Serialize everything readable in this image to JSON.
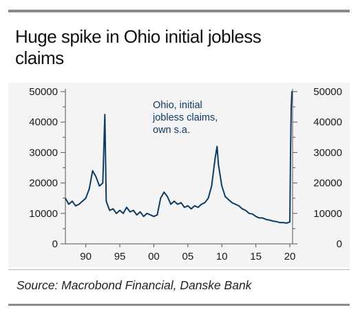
{
  "header": {
    "title_line1": "Huge spike in Ohio initial jobless",
    "title_line2": "claims"
  },
  "footer": {
    "source": "Source: Macrobond Financial, Danske Bank"
  },
  "colors": {
    "series": "#0e3a62",
    "panel": "#f4f4f4",
    "rules": "#8a8a8a"
  },
  "chart_data": {
    "type": "line",
    "title": "",
    "xlabel": "",
    "ylabel": "",
    "x_ticks": [
      "90",
      "95",
      "00",
      "05",
      "10",
      "15",
      "20"
    ],
    "x_tick_years": [
      1990,
      1995,
      2000,
      2005,
      2010,
      2015,
      2020
    ],
    "y_ticks_left": [
      "0",
      "10000",
      "20000",
      "30000",
      "40000",
      "50000"
    ],
    "y_ticks_right": [
      "0",
      "10000",
      "20000",
      "30000",
      "40000",
      "50000"
    ],
    "ylim": [
      0,
      50000
    ],
    "xlim": [
      1987.0,
      2020.4
    ],
    "grid": false,
    "annotation": [
      "Ohio, initial",
      "jobless claims,",
      "own s.a."
    ],
    "series": [
      {
        "color": "#0e3a62",
        "x": [
          1987.0,
          1987.5,
          1988.0,
          1988.5,
          1989.0,
          1989.5,
          1990.0,
          1990.5,
          1991.0,
          1991.5,
          1992.0,
          1992.5,
          1992.8,
          1993.0,
          1993.5,
          1994.0,
          1994.5,
          1995.0,
          1995.5,
          1996.0,
          1996.5,
          1997.0,
          1997.5,
          1998.0,
          1998.5,
          1999.0,
          1999.5,
          2000.0,
          2000.5,
          2001.0,
          2001.5,
          2002.0,
          2002.5,
          2003.0,
          2003.5,
          2004.0,
          2004.5,
          2005.0,
          2005.5,
          2006.0,
          2006.5,
          2007.0,
          2007.5,
          2008.0,
          2008.5,
          2009.0,
          2009.3,
          2009.5,
          2010.0,
          2010.5,
          2011.0,
          2011.5,
          2012.0,
          2012.5,
          2013.0,
          2013.5,
          2014.0,
          2014.5,
          2015.0,
          2015.5,
          2016.0,
          2016.5,
          2017.0,
          2017.5,
          2018.0,
          2018.5,
          2019.0,
          2019.5,
          2020.0,
          2020.1,
          2020.2,
          2020.3
        ],
        "y": [
          15000,
          13000,
          14000,
          12500,
          13000,
          14000,
          15000,
          18000,
          24000,
          22000,
          19000,
          20000,
          42500,
          14000,
          11000,
          11500,
          10000,
          11000,
          10000,
          12000,
          10500,
          11000,
          9500,
          10500,
          9000,
          10000,
          9500,
          9000,
          9500,
          15000,
          17000,
          15500,
          13000,
          14000,
          13000,
          13500,
          12000,
          12500,
          11500,
          12500,
          12000,
          13000,
          13500,
          15000,
          19000,
          28000,
          32000,
          26000,
          19000,
          15500,
          14500,
          13500,
          13000,
          12500,
          11500,
          11000,
          10000,
          9800,
          9000,
          8500,
          8500,
          8000,
          7800,
          7500,
          7300,
          7000,
          7000,
          6800,
          7200,
          30000,
          45000,
          50000
        ]
      }
    ]
  }
}
